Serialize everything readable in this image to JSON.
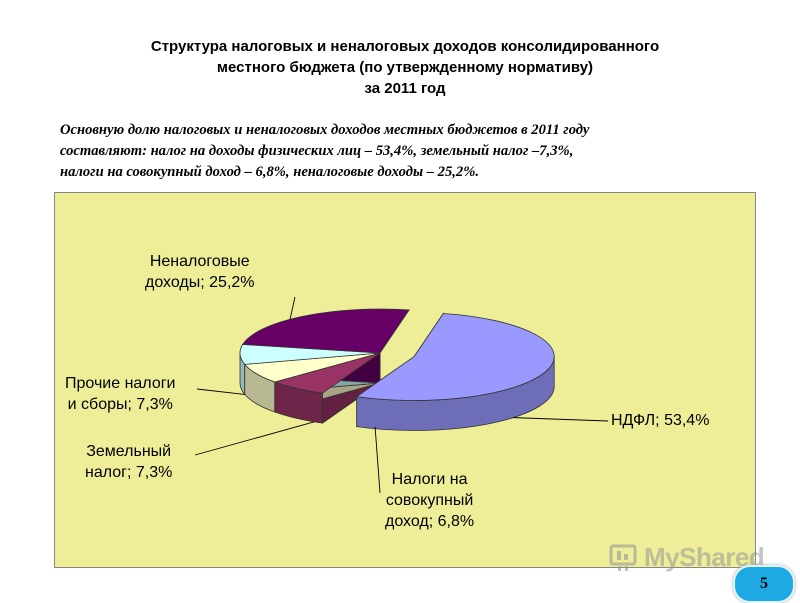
{
  "slide": {
    "title_line1": "Структура налоговых и неналоговых доходов консолидированного",
    "title_line2": "местного бюджета (по утвержденному нормативу)",
    "title_line3": "за 2011 год",
    "intro_line1": "Основную долю налоговых и неналоговых доходов местных бюджетов в 2011 году",
    "intro_line2": "составляют: налог на доходы физических лиц – 53,4%, земельный налог –7,3%,",
    "intro_line3": "налоги на совокупный доход – 6,8%, неналоговые доходы – 25,2%.",
    "page_number": "5",
    "watermark": "MyShared",
    "background_color": "#EEEE99"
  },
  "chart_data": {
    "type": "pie",
    "style": "3d-exploded",
    "slices": [
      {
        "key": "ndfl",
        "value": 53.4,
        "label": "НДФЛ; 53,4%",
        "color": "#9999FF",
        "exploded": true
      },
      {
        "key": "sovokup",
        "value": 6.8,
        "label_line1": "Налоги на",
        "label_line2": "совокупный",
        "label_line3": "доход; 6,8%",
        "color": "#993366"
      },
      {
        "key": "zemel",
        "value": 7.3,
        "label_line1": "Земельный",
        "label_line2": "налог; 7,3%",
        "color": "#FFFFCC"
      },
      {
        "key": "prochie",
        "value": 7.3,
        "label_line1": "Прочие налоги",
        "label_line2": "и сборы; 7,3%",
        "color": "#CCFFFF"
      },
      {
        "key": "nenalog",
        "value": 25.2,
        "label_line1": "Неналоговые",
        "label_line2": "доходы; 25,2%",
        "color": "#660066"
      }
    ]
  }
}
